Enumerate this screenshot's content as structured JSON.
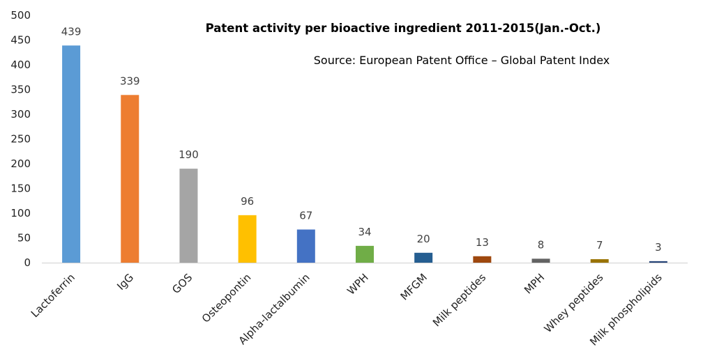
{
  "chart_data": {
    "type": "bar",
    "title": "Patent activity per bioactive ingredient 2011-2015(Jan.-Oct.)",
    "source_note": "Source: European Patent Office – Global Patent Index",
    "xlabel": "",
    "ylabel": "",
    "ylim": [
      0,
      500
    ],
    "yticks": [
      0,
      50,
      100,
      150,
      200,
      250,
      300,
      350,
      400,
      450,
      500
    ],
    "grid": false,
    "legend": "none",
    "categories": [
      "Lactoferrin",
      "IgG",
      "GOS",
      "Osteopontin",
      "Alpha-lactalbumin",
      "WPH",
      "MFGM",
      "Milk peptides",
      "MPH",
      "Whey peptides",
      "Milk phospholipids"
    ],
    "values": [
      439,
      339,
      190,
      96,
      67,
      34,
      20,
      13,
      8,
      7,
      3
    ],
    "colors": [
      "#5b9bd5",
      "#ed7d31",
      "#a5a5a5",
      "#ffc000",
      "#4472c4",
      "#70ad47",
      "#255e91",
      "#9e480e",
      "#636363",
      "#997300",
      "#264478"
    ]
  }
}
